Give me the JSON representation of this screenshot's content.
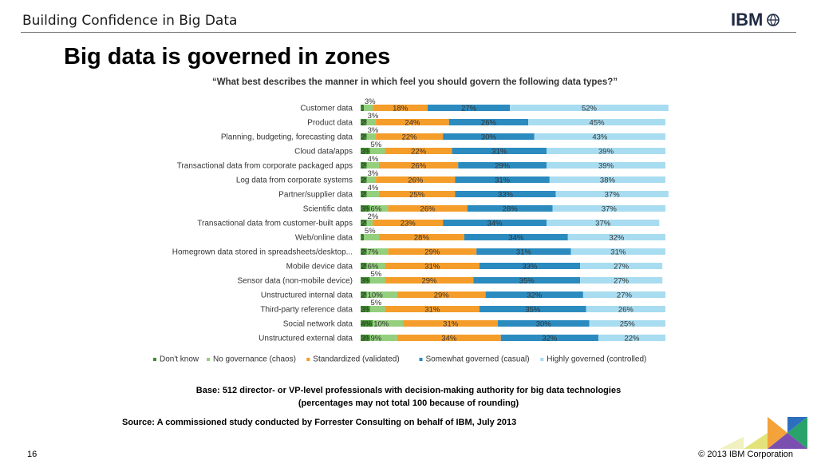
{
  "header": {
    "title": "Building Confidence in Big Data",
    "logo_text": "IBM"
  },
  "slide": {
    "title": "Big data is governed in zones",
    "base_line1": "Base: 512 director- or VP-level professionals with decision-making authority for big data technologies",
    "base_line2": "(percentages may not total 100 because of rounding)",
    "source": "Source: A commissioned study conducted by Forrester Consulting on behalf of IBM, July 2013"
  },
  "footer": {
    "page_number": "16",
    "copyright": "© 2013 IBM Corporation"
  },
  "chart_data": {
    "type": "bar",
    "orientation": "horizontal",
    "stacked": true,
    "title": "“What best describes the manner in which feel you should govern the following data types?”",
    "categories": [
      "Customer data",
      "Product data",
      "Planning, budgeting, forecasting data",
      "Cloud data/apps",
      "Transactional data from corporate packaged apps",
      "Log data from corporate systems",
      "Partner/supplier data",
      "Scientific data",
      "Transactional data from customer-built apps",
      "Web/online data",
      "Homegrown data stored in spreadsheets/desktop...",
      "Mobile device data",
      "Sensor data (non-mobile device)",
      "Unstructured internal data",
      "Third-party reference data",
      "Social network data",
      "Unstructured external data"
    ],
    "series": [
      {
        "name": "Don't know",
        "color": "#3f8f2f",
        "values": [
          1,
          2,
          2,
          3,
          2,
          2,
          2,
          3,
          2,
          1,
          2,
          2,
          3,
          2,
          3,
          4,
          3
        ]
      },
      {
        "name": "No governance (chaos)",
        "color": "#93cf7d",
        "values": [
          3,
          3,
          3,
          5,
          4,
          3,
          4,
          6,
          2,
          5,
          7,
          6,
          5,
          10,
          5,
          10,
          9
        ]
      },
      {
        "name": "Standardized (validated)",
        "color": "#f59d2a",
        "values": [
          18,
          24,
          22,
          22,
          26,
          26,
          25,
          26,
          23,
          28,
          29,
          31,
          29,
          29,
          31,
          31,
          34
        ]
      },
      {
        "name": "Somewhat governed (casual)",
        "color": "#2b8bbf",
        "values": [
          27,
          26,
          30,
          31,
          29,
          31,
          33,
          28,
          34,
          34,
          31,
          33,
          35,
          32,
          35,
          30,
          32
        ]
      },
      {
        "name": "Highly governed (controlled)",
        "color": "#a8dcf0",
        "values": [
          52,
          45,
          43,
          39,
          39,
          38,
          37,
          37,
          37,
          32,
          31,
          27,
          27,
          27,
          26,
          25,
          22
        ]
      }
    ],
    "value_format": "percent",
    "legend_position": "bottom",
    "grid": false
  }
}
